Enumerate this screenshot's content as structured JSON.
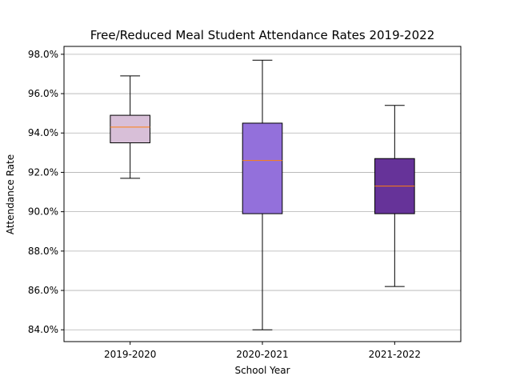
{
  "chart_data": {
    "type": "box",
    "title": "Free/Reduced Meal Student Attendance Rates 2019-2022",
    "xlabel": "School Year",
    "ylabel": "Attendance Rate",
    "y_format": "percent_1dp",
    "ylim": [
      83.4,
      98.4
    ],
    "yticks": [
      84.0,
      86.0,
      88.0,
      90.0,
      92.0,
      94.0,
      96.0,
      98.0
    ],
    "grid": "y",
    "categories": [
      "2019-2020",
      "2020-2021",
      "2021-2022"
    ],
    "boxes": [
      {
        "category": "2019-2020",
        "whisker_low": 91.7,
        "q1": 93.5,
        "median": 94.3,
        "q3": 94.9,
        "whisker_high": 96.9,
        "color": "#d8bfd8"
      },
      {
        "category": "2020-2021",
        "whisker_low": 84.0,
        "q1": 89.9,
        "median": 92.6,
        "q3": 94.5,
        "whisker_high": 97.7,
        "color": "#9370db"
      },
      {
        "category": "2021-2022",
        "whisker_low": 86.2,
        "q1": 89.9,
        "median": 91.3,
        "q3": 92.7,
        "whisker_high": 95.4,
        "color": "#663399"
      }
    ],
    "median_color": "#ff7f0e",
    "grid_color": "#b0b0b0"
  }
}
